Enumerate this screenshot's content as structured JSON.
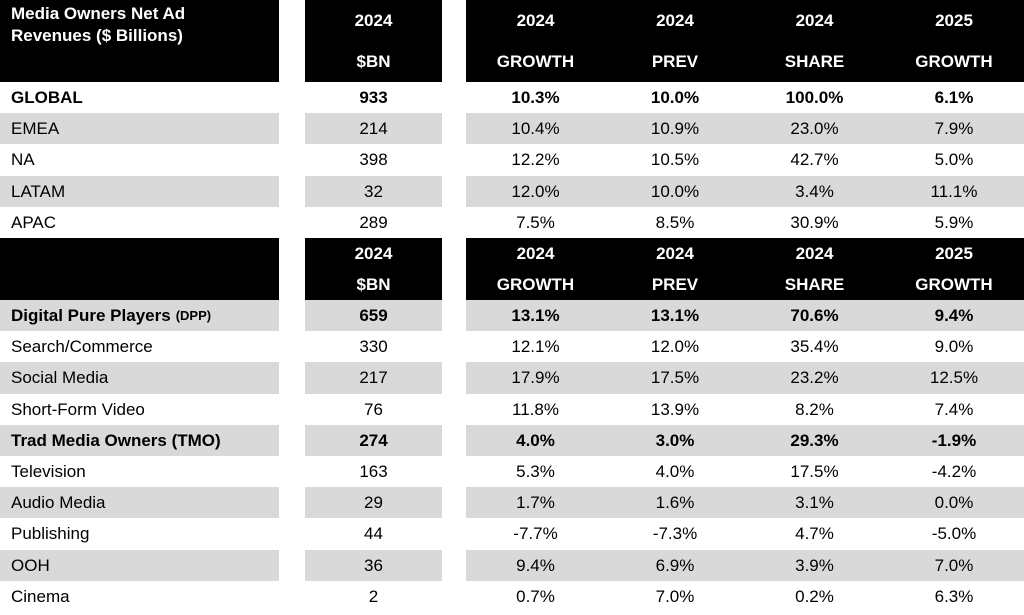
{
  "chart_data": {
    "type": "table",
    "title": "Media Owners Net Ad Revenues ($ Billions)",
    "header": {
      "years": [
        "2024",
        "2024",
        "2024",
        "2024",
        "2025"
      ],
      "labels": [
        "$BN",
        "GROWTH",
        "PREV",
        "SHARE",
        "GROWTH"
      ]
    },
    "sections": [
      {
        "rows": [
          {
            "label": "GLOBAL",
            "suffix": "",
            "bold": true,
            "values": [
              "933",
              "10.3%",
              "10.0%",
              "100.0%",
              "6.1%"
            ]
          },
          {
            "label": "EMEA",
            "suffix": "",
            "bold": false,
            "values": [
              "214",
              "10.4%",
              "10.9%",
              "23.0%",
              "7.9%"
            ]
          },
          {
            "label": "NA",
            "suffix": "",
            "bold": false,
            "values": [
              "398",
              "12.2%",
              "10.5%",
              "42.7%",
              "5.0%"
            ]
          },
          {
            "label": "LATAM",
            "suffix": "",
            "bold": false,
            "values": [
              "32",
              "12.0%",
              "10.0%",
              "3.4%",
              "11.1%"
            ]
          },
          {
            "label": "APAC",
            "suffix": "",
            "bold": false,
            "values": [
              "289",
              "7.5%",
              "8.5%",
              "30.9%",
              "5.9%"
            ]
          }
        ]
      },
      {
        "rows": [
          {
            "label": "Digital Pure Players",
            "suffix": "(DPP)",
            "bold": true,
            "values": [
              "659",
              "13.1%",
              "13.1%",
              "70.6%",
              "9.4%"
            ]
          },
          {
            "label": "Search/Commerce",
            "suffix": "",
            "bold": false,
            "values": [
              "330",
              "12.1%",
              "12.0%",
              "35.4%",
              "9.0%"
            ]
          },
          {
            "label": "Social Media",
            "suffix": "",
            "bold": false,
            "values": [
              "217",
              "17.9%",
              "17.5%",
              "23.2%",
              "12.5%"
            ]
          },
          {
            "label": "Short-Form Video",
            "suffix": "",
            "bold": false,
            "values": [
              "76",
              "11.8%",
              "13.9%",
              "8.2%",
              "7.4%"
            ]
          },
          {
            "label": "Trad Media Owners (TMO)",
            "suffix": "",
            "bold": true,
            "values": [
              "274",
              "4.0%",
              "3.0%",
              "29.3%",
              "-1.9%"
            ]
          },
          {
            "label": "Television",
            "suffix": "",
            "bold": false,
            "values": [
              "163",
              "5.3%",
              "4.0%",
              "17.5%",
              "-4.2%"
            ]
          },
          {
            "label": "Audio Media",
            "suffix": "",
            "bold": false,
            "values": [
              "29",
              "1.7%",
              "1.6%",
              "3.1%",
              "0.0%"
            ]
          },
          {
            "label": "Publishing",
            "suffix": "",
            "bold": false,
            "values": [
              "44",
              "-7.7%",
              "-7.3%",
              "4.7%",
              "-5.0%"
            ]
          },
          {
            "label": "OOH",
            "suffix": "",
            "bold": false,
            "values": [
              "36",
              "9.4%",
              "6.9%",
              "3.9%",
              "7.0%"
            ]
          },
          {
            "label": "Cinema",
            "suffix": "",
            "bold": false,
            "values": [
              "2",
              "0.7%",
              "7.0%",
              "0.2%",
              "6.3%"
            ]
          }
        ]
      }
    ],
    "colors": {
      "header_bg": "#000000",
      "header_text": "#ffffff",
      "stripe": "#d9d9d9",
      "body_text": "#000000"
    }
  }
}
